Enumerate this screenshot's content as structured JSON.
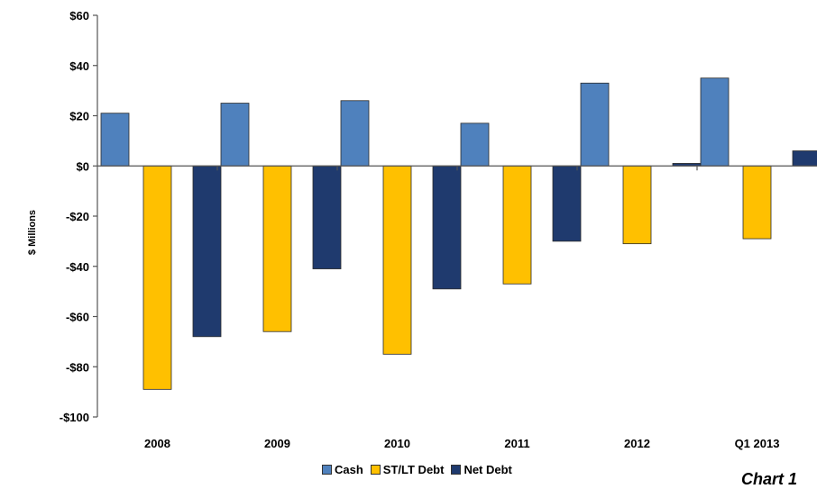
{
  "chart_data": {
    "type": "bar",
    "categories": [
      "2008",
      "2009",
      "2010",
      "2011",
      "2012",
      "Q1 2013"
    ],
    "series": [
      {
        "name": "Cash",
        "color": "#4f81bd",
        "values": [
          21,
          25,
          26,
          17,
          33,
          35
        ]
      },
      {
        "name": "ST/LT Debt",
        "color": "#ffc000",
        "values": [
          -89,
          -66,
          -75,
          -47,
          -31,
          -29
        ]
      },
      {
        "name": "Net Debt",
        "color": "#1f3a6e",
        "values": [
          -68,
          -41,
          -49,
          -30,
          1,
          6
        ]
      }
    ],
    "ylabel": "$ Millions",
    "xlabel": "",
    "ylim": [
      -100,
      60
    ],
    "yticks": [
      60,
      40,
      20,
      0,
      -20,
      -40,
      -60,
      -80,
      -100
    ],
    "ytick_labels": [
      "$60",
      "$40",
      "$20",
      "$0",
      "-$20",
      "-$40",
      "-$60",
      "-$80",
      "-$100"
    ],
    "legend_position": "bottom",
    "grid": false
  },
  "corner_text": "Chart 1"
}
